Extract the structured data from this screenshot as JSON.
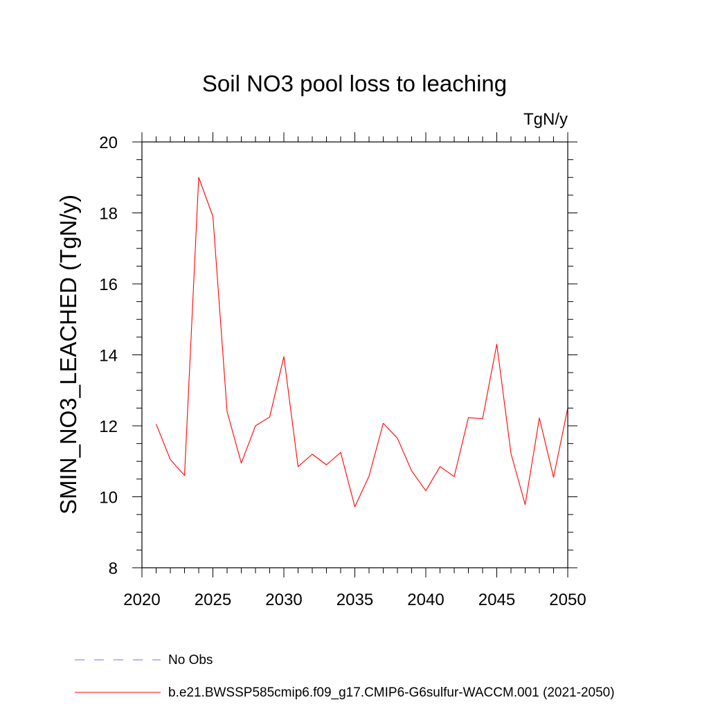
{
  "chart_data": {
    "type": "line",
    "title": "Soil NO3 pool loss to leaching",
    "units": "TgN/y",
    "ylabel": "SMIN_NO3_LEACHED  (TgN/y)",
    "xlabel": "",
    "xlim": [
      2020,
      2050
    ],
    "ylim": [
      8,
      20
    ],
    "x_ticks": [
      2020,
      2025,
      2030,
      2035,
      2040,
      2045,
      2050
    ],
    "y_ticks": [
      8,
      10,
      12,
      14,
      16,
      18,
      20
    ],
    "x_minor_step": 1,
    "y_minor_step": 0.5,
    "grid": false,
    "legend_placement": "bottom",
    "series": [
      {
        "name": "b.e21.BWSSP585cmip6.f09_g17.CMIP6-G6sulfur-WACCM.001 (2021-2050)",
        "color": "#ff0000",
        "style": "solid",
        "x": [
          2021,
          2022,
          2023,
          2024,
          2025,
          2026,
          2027,
          2028,
          2029,
          2030,
          2031,
          2032,
          2033,
          2034,
          2035,
          2036,
          2037,
          2038,
          2039,
          2040,
          2041,
          2042,
          2043,
          2044,
          2045,
          2046,
          2047,
          2048,
          2049,
          2050
        ],
        "values": [
          12.05,
          11.05,
          10.6,
          19.0,
          17.9,
          12.4,
          10.95,
          12.0,
          12.25,
          13.95,
          10.85,
          11.2,
          10.9,
          11.25,
          9.72,
          10.58,
          12.07,
          11.65,
          10.73,
          10.17,
          10.85,
          10.57,
          12.23,
          12.2,
          14.3,
          11.22,
          9.78,
          12.22,
          10.55,
          12.5
        ]
      },
      {
        "name": "No Obs",
        "color": "#7b68ee",
        "style": "dashed",
        "x": [],
        "values": []
      }
    ]
  }
}
